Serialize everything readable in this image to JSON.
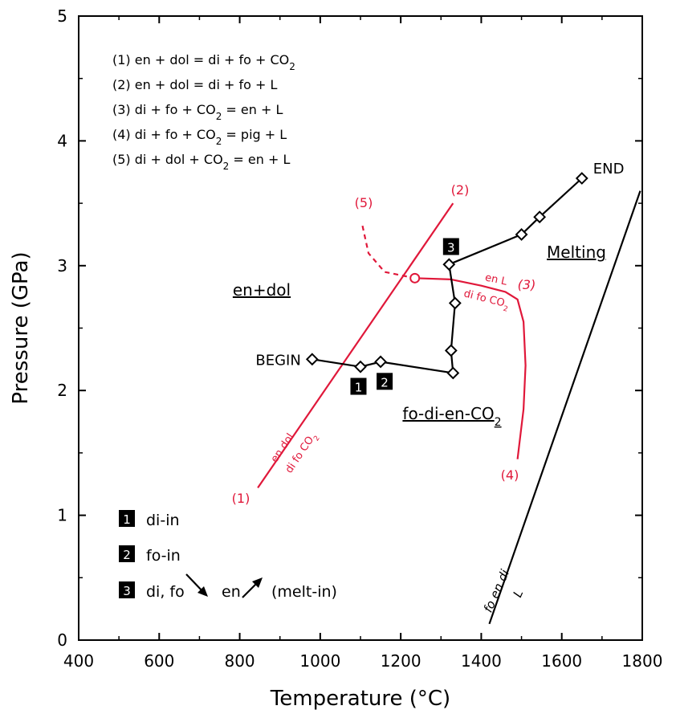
{
  "chart_data": {
    "type": "line",
    "xlabel": "Temperature (°C)",
    "ylabel": "Pressure (GPa)",
    "xlim": [
      400,
      1800
    ],
    "ylim": [
      0,
      5
    ],
    "x_ticks": [
      400,
      600,
      800,
      1000,
      1200,
      1400,
      1600,
      1800
    ],
    "y_ticks": [
      0,
      1,
      2,
      3,
      4,
      5
    ],
    "grid": false,
    "legend": {
      "reactions": [
        {
          "num": "(1)",
          "lhs": "en + dol = di + fo + CO",
          "sub": "2",
          "tail": ""
        },
        {
          "num": "(2)",
          "lhs": "en + dol = di + fo + L",
          "sub": "",
          "tail": ""
        },
        {
          "num": "(3)",
          "lhs": "di + fo + CO",
          "sub": "2",
          "tail": " = en + L"
        },
        {
          "num": "(4)",
          "lhs": "di + fo + CO",
          "sub": "2",
          "tail": " = pig + L"
        },
        {
          "num": "(5)",
          "lhs": "di + dol + CO",
          "sub": "2",
          "tail": " = en + L"
        }
      ],
      "key": [
        {
          "badge": "1",
          "text": "di-in"
        },
        {
          "badge": "2",
          "text": "fo-in"
        },
        {
          "badge": "3",
          "text": "di, fo",
          "text2": "en",
          "text3": "(melt-in)"
        }
      ]
    },
    "fields": [
      "en+dol",
      "fo-di-en-CO",
      "Melting"
    ],
    "fields_sub": {
      "fo-di-en-CO": "2"
    },
    "path": {
      "color": "#000000",
      "points": [
        {
          "x": 980,
          "y": 2.25
        },
        {
          "x": 1100,
          "y": 2.19
        },
        {
          "x": 1150,
          "y": 2.23
        },
        {
          "x": 1330,
          "y": 2.14
        },
        {
          "x": 1325,
          "y": 2.32
        },
        {
          "x": 1335,
          "y": 2.7
        },
        {
          "x": 1320,
          "y": 3.01
        },
        {
          "x": 1500,
          "y": 3.25
        },
        {
          "x": 1545,
          "y": 3.39
        },
        {
          "x": 1650,
          "y": 3.7
        }
      ],
      "start_label": "BEGIN",
      "end_label": "END",
      "badges": [
        {
          "num": "1",
          "x": 1095,
          "y": 2.03
        },
        {
          "num": "2",
          "x": 1160,
          "y": 2.07
        },
        {
          "num": "3",
          "x": 1325,
          "y": 3.15
        }
      ]
    },
    "reactions": {
      "color": "#e0183a",
      "curve1_2": [
        {
          "x": 845,
          "y": 1.22
        },
        {
          "x": 1330,
          "y": 3.5
        }
      ],
      "curve3_4": [
        {
          "x": 1235,
          "y": 2.9
        },
        {
          "x": 1325,
          "y": 2.89
        },
        {
          "x": 1400,
          "y": 2.84
        },
        {
          "x": 1460,
          "y": 2.79
        },
        {
          "x": 1490,
          "y": 2.73
        },
        {
          "x": 1505,
          "y": 2.55
        },
        {
          "x": 1510,
          "y": 2.2
        },
        {
          "x": 1505,
          "y": 1.85
        },
        {
          "x": 1490,
          "y": 1.45
        }
      ],
      "curve5": [
        {
          "x": 1105,
          "y": 3.32
        },
        {
          "x": 1120,
          "y": 3.1
        },
        {
          "x": 1160,
          "y": 2.95
        },
        {
          "x": 1235,
          "y": 2.9
        }
      ],
      "invariant_point": {
        "x": 1235,
        "y": 2.9
      },
      "labels": [
        "(1)",
        "(2)",
        "(3)",
        "(4)",
        "(5)"
      ],
      "curve1_label_a": "en dol",
      "curve1_label_b": "di fo CO",
      "curve1_label_b_sub": "2",
      "curve3_label_a": "en L",
      "curve3_label_b": "di fo CO",
      "curve3_label_b_sub": "2"
    },
    "solidus": {
      "color": "#000000",
      "points": [
        {
          "x": 1420,
          "y": 0.13
        },
        {
          "x": 1795,
          "y": 3.6
        }
      ],
      "label_a": "fo en di",
      "label_b": "L"
    }
  }
}
